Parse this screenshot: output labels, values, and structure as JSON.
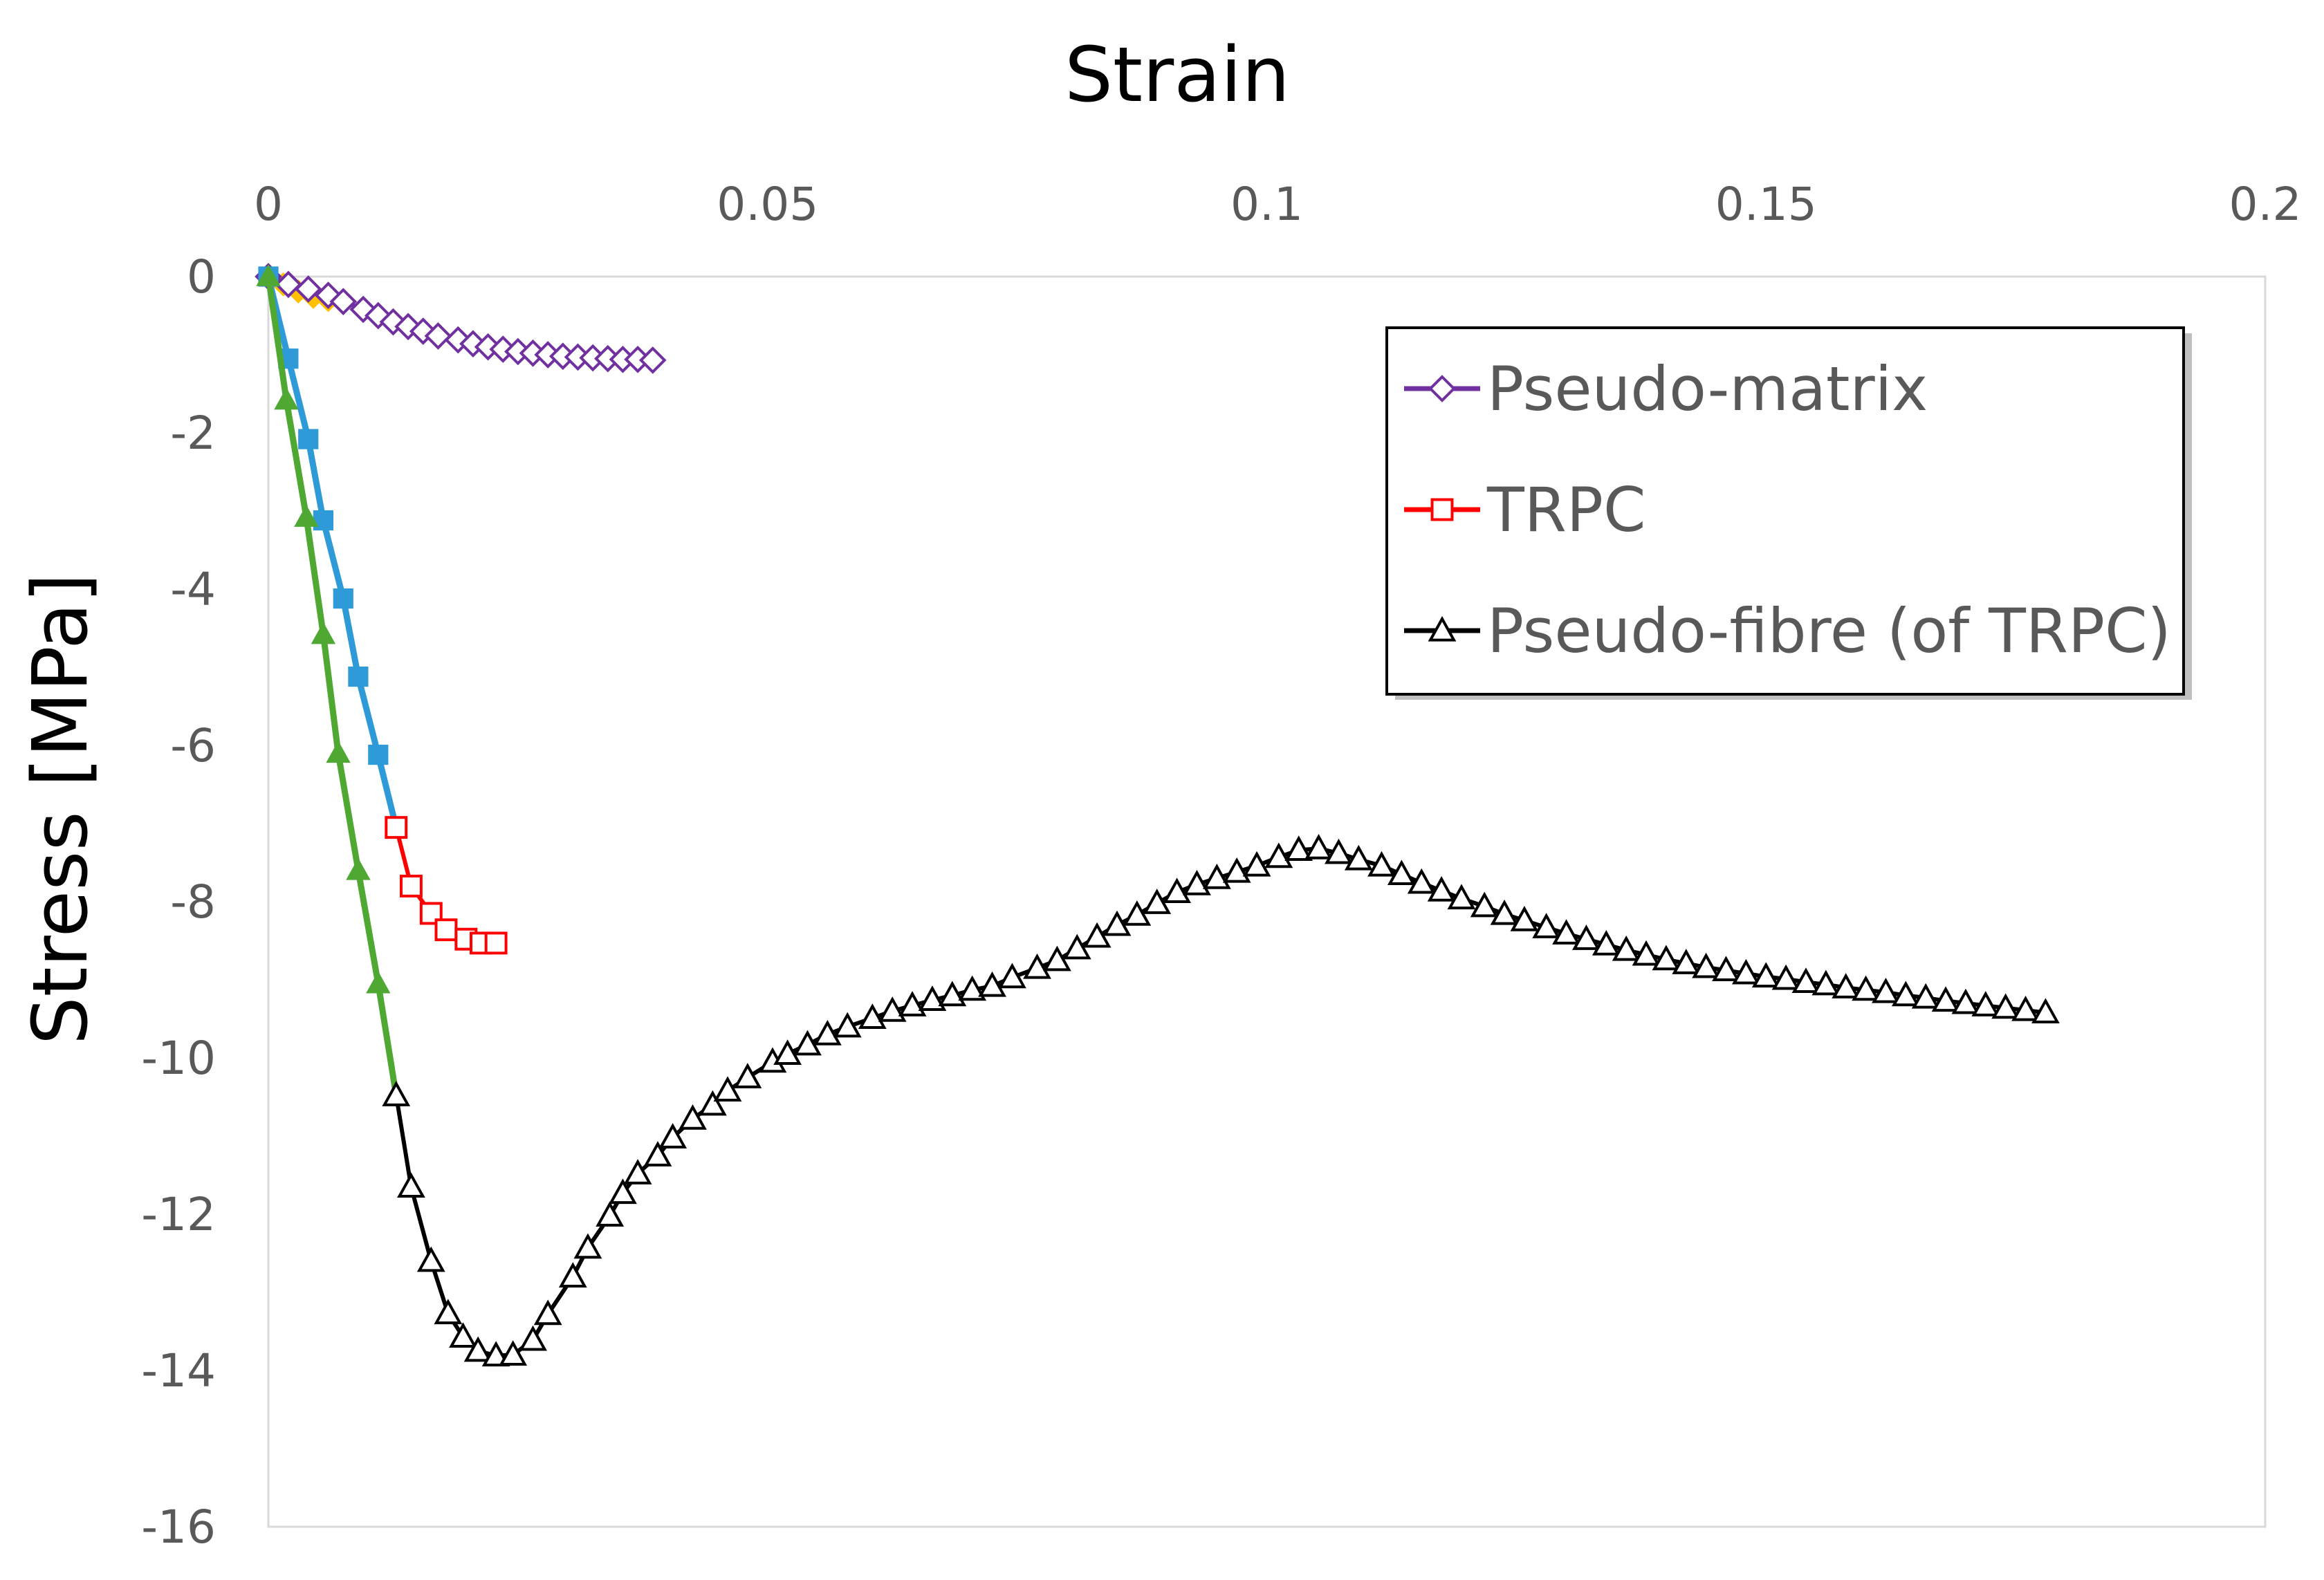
{
  "chart_data": {
    "type": "scatter",
    "title": "",
    "xlabel": "Strain",
    "ylabel": "Stress [MPa]",
    "xlim": [
      0,
      0.2
    ],
    "ylim": [
      -16,
      0
    ],
    "x_axis_position": "top",
    "y_reversed": false,
    "x_ticks": [
      0,
      0.05,
      0.1,
      0.15,
      0.2
    ],
    "x_tick_labels": [
      "0",
      "0.05",
      "0.1",
      "0.15",
      "0.2"
    ],
    "y_ticks": [
      0,
      -2,
      -4,
      -6,
      -8,
      -10,
      -12,
      -14,
      -16
    ],
    "y_tick_labels": [
      "0",
      "-2",
      "-4",
      "-6",
      "-8",
      "-10",
      "-12",
      "-14",
      "-16"
    ],
    "grid": false,
    "legend_position": "top-right",
    "series": [
      {
        "name": "",
        "color": "#ffc000",
        "marker": "diamond-filled",
        "in_legend": false,
        "points": [
          [
            0,
            0
          ],
          [
            0.0015,
            -0.1
          ],
          [
            0.003,
            -0.19
          ],
          [
            0.0045,
            -0.26
          ],
          [
            0.006,
            -0.3
          ]
        ]
      },
      {
        "name": "Pseudo-matrix",
        "color": "#7030a0",
        "marker": "diamond-open",
        "in_legend": true,
        "points": [
          [
            0,
            0
          ],
          [
            0.002,
            -0.1
          ],
          [
            0.004,
            -0.16
          ],
          [
            0.006,
            -0.24
          ],
          [
            0.0075,
            -0.32
          ],
          [
            0.0095,
            -0.42
          ],
          [
            0.011,
            -0.5
          ],
          [
            0.0125,
            -0.58
          ],
          [
            0.014,
            -0.64
          ],
          [
            0.0155,
            -0.7
          ],
          [
            0.017,
            -0.76
          ],
          [
            0.019,
            -0.81
          ],
          [
            0.0205,
            -0.86
          ],
          [
            0.022,
            -0.9
          ],
          [
            0.0235,
            -0.93
          ],
          [
            0.025,
            -0.96
          ],
          [
            0.0265,
            -0.98
          ],
          [
            0.028,
            -1.0
          ],
          [
            0.0295,
            -1.02
          ],
          [
            0.031,
            -1.03
          ],
          [
            0.0325,
            -1.04
          ],
          [
            0.034,
            -1.05
          ],
          [
            0.0355,
            -1.06
          ],
          [
            0.037,
            -1.06
          ],
          [
            0.0385,
            -1.07
          ]
        ]
      },
      {
        "name": "",
        "color": "#2e9ad8",
        "marker": "square-filled",
        "in_legend": false,
        "points": [
          [
            0,
            0
          ],
          [
            0.002,
            -1.05
          ],
          [
            0.004,
            -2.08
          ],
          [
            0.0055,
            -3.12
          ],
          [
            0.0075,
            -4.12
          ],
          [
            0.009,
            -5.12
          ],
          [
            0.011,
            -6.12
          ],
          [
            0.0128,
            -7.05
          ]
        ]
      },
      {
        "name": "TRPC",
        "color": "#ff0000",
        "marker": "square-open",
        "in_legend": true,
        "points": [
          [
            0.0128,
            -7.05
          ],
          [
            0.0143,
            -7.8
          ],
          [
            0.0163,
            -8.15
          ],
          [
            0.0178,
            -8.36
          ],
          [
            0.0198,
            -8.48
          ],
          [
            0.0213,
            -8.53
          ],
          [
            0.0228,
            -8.53
          ]
        ]
      },
      {
        "name": "",
        "color": "#4ea832",
        "marker": "triangle-filled",
        "in_legend": false,
        "points": [
          [
            0,
            0
          ],
          [
            0.0018,
            -1.58
          ],
          [
            0.0038,
            -3.08
          ],
          [
            0.0055,
            -4.58
          ],
          [
            0.007,
            -6.1
          ],
          [
            0.009,
            -7.6
          ],
          [
            0.011,
            -9.05
          ],
          [
            0.0128,
            -10.48
          ]
        ]
      },
      {
        "name": "Pseudo-fibre (of TRPC)",
        "color": "#000000",
        "marker": "triangle-open",
        "in_legend": true,
        "points": [
          [
            0.0128,
            -10.48
          ],
          [
            0.0143,
            -11.65
          ],
          [
            0.0163,
            -12.6
          ],
          [
            0.018,
            -13.27
          ],
          [
            0.0195,
            -13.57
          ],
          [
            0.021,
            -13.75
          ],
          [
            0.0228,
            -13.81
          ],
          [
            0.0245,
            -13.8
          ],
          [
            0.0265,
            -13.61
          ],
          [
            0.028,
            -13.28
          ],
          [
            0.0305,
            -12.8
          ],
          [
            0.032,
            -12.43
          ],
          [
            0.0342,
            -12.02
          ],
          [
            0.0355,
            -11.73
          ],
          [
            0.037,
            -11.48
          ],
          [
            0.039,
            -11.25
          ],
          [
            0.0405,
            -11.02
          ],
          [
            0.0425,
            -10.78
          ],
          [
            0.0445,
            -10.6
          ],
          [
            0.046,
            -10.42
          ],
          [
            0.048,
            -10.25
          ],
          [
            0.0505,
            -10.05
          ],
          [
            0.052,
            -9.95
          ],
          [
            0.054,
            -9.83
          ],
          [
            0.056,
            -9.7
          ],
          [
            0.058,
            -9.6
          ],
          [
            0.0605,
            -9.49
          ],
          [
            0.0625,
            -9.4
          ],
          [
            0.0645,
            -9.33
          ],
          [
            0.0665,
            -9.26
          ],
          [
            0.0685,
            -9.2
          ],
          [
            0.0705,
            -9.13
          ],
          [
            0.0725,
            -9.08
          ],
          [
            0.0745,
            -8.97
          ],
          [
            0.077,
            -8.85
          ],
          [
            0.079,
            -8.75
          ],
          [
            0.081,
            -8.6
          ],
          [
            0.083,
            -8.45
          ],
          [
            0.085,
            -8.3
          ],
          [
            0.087,
            -8.17
          ],
          [
            0.089,
            -8.02
          ],
          [
            0.091,
            -7.88
          ],
          [
            0.093,
            -7.78
          ],
          [
            0.095,
            -7.7
          ],
          [
            0.097,
            -7.62
          ],
          [
            0.099,
            -7.54
          ],
          [
            0.1012,
            -7.43
          ],
          [
            0.1032,
            -7.34
          ],
          [
            0.1052,
            -7.32
          ],
          [
            0.1072,
            -7.38
          ],
          [
            0.1092,
            -7.46
          ],
          [
            0.1115,
            -7.54
          ],
          [
            0.1135,
            -7.65
          ],
          [
            0.1155,
            -7.76
          ],
          [
            0.1175,
            -7.86
          ],
          [
            0.1195,
            -7.96
          ],
          [
            0.1218,
            -8.06
          ],
          [
            0.1238,
            -8.16
          ],
          [
            0.1258,
            -8.24
          ],
          [
            0.128,
            -8.33
          ],
          [
            0.13,
            -8.41
          ],
          [
            0.132,
            -8.48
          ],
          [
            0.134,
            -8.55
          ],
          [
            0.136,
            -8.62
          ],
          [
            0.138,
            -8.68
          ],
          [
            0.14,
            -8.74
          ],
          [
            0.142,
            -8.79
          ],
          [
            0.144,
            -8.84
          ],
          [
            0.146,
            -8.88
          ],
          [
            0.148,
            -8.92
          ],
          [
            0.15,
            -8.96
          ],
          [
            0.152,
            -8.99
          ],
          [
            0.154,
            -9.03
          ],
          [
            0.156,
            -9.06
          ],
          [
            0.158,
            -9.1
          ],
          [
            0.16,
            -9.13
          ],
          [
            0.162,
            -9.16
          ],
          [
            0.164,
            -9.2
          ],
          [
            0.166,
            -9.23
          ],
          [
            0.168,
            -9.27
          ],
          [
            0.17,
            -9.3
          ],
          [
            0.172,
            -9.33
          ],
          [
            0.174,
            -9.36
          ],
          [
            0.176,
            -9.39
          ],
          [
            0.178,
            -9.42
          ]
        ]
      }
    ]
  }
}
